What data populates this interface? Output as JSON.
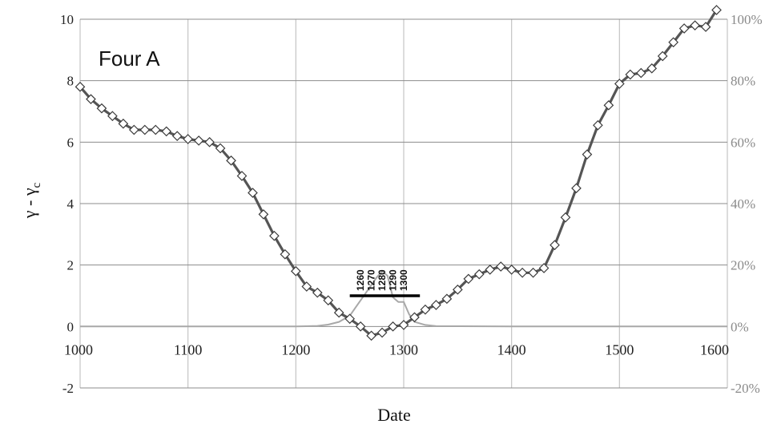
{
  "chart_data": {
    "type": "line",
    "panel_label": "Four A",
    "xlabel": "Date",
    "ylabel_main": "γ - γ",
    "ylabel_sub": "c",
    "xlim": [
      1000,
      1600
    ],
    "ylim_left": [
      -2,
      10
    ],
    "ylim_right": [
      -20,
      100
    ],
    "x_ticks": [
      "1000",
      "1100",
      "1200",
      "1300",
      "1400",
      "1500",
      "1600"
    ],
    "y_left_ticks": [
      "-2",
      "0",
      "2",
      "4",
      "6",
      "8",
      "10"
    ],
    "y_right_ticks": [
      "-20%",
      "0%",
      "20%",
      "40%",
      "60%",
      "80%",
      "100%"
    ],
    "grid": true,
    "series": [
      {
        "axis": "left",
        "color": "#555555",
        "marker": "diamond",
        "x": [
          1000,
          1010,
          1020,
          1030,
          1040,
          1050,
          1060,
          1070,
          1080,
          1090,
          1100,
          1110,
          1120,
          1130,
          1140,
          1150,
          1160,
          1170,
          1180,
          1190,
          1200,
          1210,
          1220,
          1230,
          1240,
          1250,
          1260,
          1270,
          1280,
          1290,
          1300,
          1310,
          1320,
          1330,
          1340,
          1350,
          1360,
          1370,
          1380,
          1390,
          1400,
          1410,
          1420,
          1430,
          1440,
          1450,
          1460,
          1470,
          1480,
          1490,
          1500,
          1510,
          1520,
          1530,
          1540,
          1550,
          1560,
          1570,
          1580,
          1590
        ],
        "y": [
          7.8,
          7.4,
          7.1,
          6.85,
          6.6,
          6.4,
          6.4,
          6.4,
          6.35,
          6.2,
          6.1,
          6.05,
          6.0,
          5.8,
          5.4,
          4.9,
          4.35,
          3.65,
          2.95,
          2.35,
          1.8,
          1.3,
          1.1,
          0.85,
          0.45,
          0.25,
          0.0,
          -0.3,
          -0.2,
          0.0,
          0.05,
          0.3,
          0.55,
          0.7,
          0.9,
          1.2,
          1.55,
          1.7,
          1.85,
          1.95,
          1.85,
          1.75,
          1.75,
          1.9,
          2.65,
          3.55,
          4.5,
          5.6,
          6.55,
          7.2,
          7.9,
          8.2,
          8.25,
          8.4,
          8.8,
          9.25,
          9.7,
          9.8,
          9.75,
          10.3
        ]
      },
      {
        "axis": "right",
        "color": "#a8a8a8",
        "marker": "none",
        "x": [
          1000,
          1200,
          1220,
          1230,
          1240,
          1250,
          1255,
          1260,
          1265,
          1270,
          1275,
          1280,
          1285,
          1290,
          1295,
          1300,
          1305,
          1310,
          1320,
          1330,
          1400,
          1600
        ],
        "y": [
          0,
          0,
          0.2,
          0.6,
          1.5,
          3.5,
          6.0,
          8.5,
          11.0,
          13.5,
          16.0,
          18.0,
          16.5,
          9.5,
          8.0,
          8.0,
          4.0,
          1.5,
          0.5,
          0.1,
          0,
          0
        ]
      }
    ],
    "annotation": {
      "bar_x": [
        1250,
        1315
      ],
      "bar_y": 1.0,
      "labels": [
        "1260",
        "1270",
        "1280",
        "1290",
        "1300"
      ]
    }
  }
}
